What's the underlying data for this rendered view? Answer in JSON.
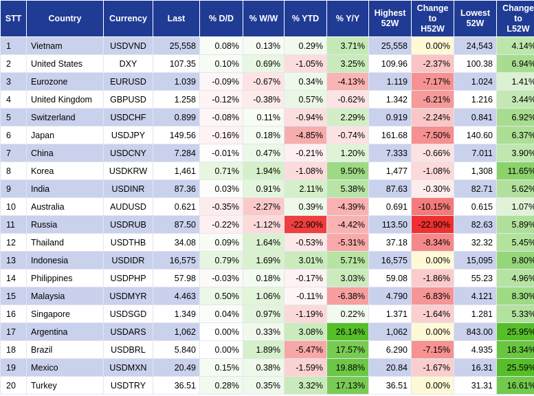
{
  "headers": {
    "stt": "STT",
    "country": "Country",
    "currency": "Currency",
    "last": "Last",
    "dd": "% D/D",
    "ww": "% W/W",
    "ytd": "% YTD",
    "yy": "% Y/Y",
    "h52_l1": "Highest",
    "h52_l2": "52W",
    "ch52_l1": "Change",
    "ch52_l2": "to",
    "ch52_l3": "H52W",
    "l52_l1": "Lowest",
    "l52_l2": "52W",
    "cl52_l1": "Change",
    "cl52_l2": "to",
    "cl52_l3": "L52W"
  },
  "rows": [
    {
      "stt": "1",
      "country": "Vietnam",
      "currency": "USDVND",
      "last": "25,558",
      "dd": "0.08%",
      "ww": "0.13%",
      "ytd": "0.29%",
      "yy": "3.71%",
      "h52": "25,558",
      "ch52": "0.00%",
      "l52": "24,543",
      "cl52": "4.14%"
    },
    {
      "stt": "2",
      "country": "United States",
      "currency": "DXY",
      "last": "107.35",
      "dd": "0.10%",
      "ww": "0.69%",
      "ytd": "-1.05%",
      "yy": "3.25%",
      "h52": "109.96",
      "ch52": "-2.37%",
      "l52": "100.38",
      "cl52": "6.94%"
    },
    {
      "stt": "3",
      "country": "Eurozone",
      "currency": "EURUSD",
      "last": "1.039",
      "dd": "-0.09%",
      "ww": "-0.67%",
      "ytd": "0.34%",
      "yy": "-4.13%",
      "h52": "1.119",
      "ch52": "-7.17%",
      "l52": "1.024",
      "cl52": "1.41%"
    },
    {
      "stt": "4",
      "country": "United Kingdom",
      "currency": "GBPUSD",
      "last": "1.258",
      "dd": "-0.12%",
      "ww": "-0.38%",
      "ytd": "0.57%",
      "yy": "-0.62%",
      "h52": "1.342",
      "ch52": "-6.21%",
      "l52": "1.216",
      "cl52": "3.44%"
    },
    {
      "stt": "5",
      "country": "Switzerland",
      "currency": "USDCHF",
      "last": "0.899",
      "dd": "-0.08%",
      "ww": "0.11%",
      "ytd": "-0.94%",
      "yy": "2.29%",
      "h52": "0.919",
      "ch52": "-2.24%",
      "l52": "0.841",
      "cl52": "6.92%"
    },
    {
      "stt": "6",
      "country": "Japan",
      "currency": "USDJPY",
      "last": "149.56",
      "dd": "-0.16%",
      "ww": "0.18%",
      "ytd": "-4.85%",
      "yy": "-0.74%",
      "h52": "161.68",
      "ch52": "-7.50%",
      "l52": "140.60",
      "cl52": "6.37%"
    },
    {
      "stt": "7",
      "country": "China",
      "currency": "USDCNY",
      "last": "7.284",
      "dd": "-0.01%",
      "ww": "0.47%",
      "ytd": "-0.21%",
      "yy": "1.20%",
      "h52": "7.333",
      "ch52": "-0.66%",
      "l52": "7.011",
      "cl52": "3.90%"
    },
    {
      "stt": "8",
      "country": "Korea",
      "currency": "USDKRW",
      "last": "1,461",
      "dd": "0.71%",
      "ww": "1.94%",
      "ytd": "-1.08%",
      "yy": "9.50%",
      "h52": "1,477",
      "ch52": "-1.08%",
      "l52": "1,308",
      "cl52": "11.65%"
    },
    {
      "stt": "9",
      "country": "India",
      "currency": "USDINR",
      "last": "87.36",
      "dd": "0.03%",
      "ww": "0.91%",
      "ytd": "2.11%",
      "yy": "5.38%",
      "h52": "87.63",
      "ch52": "-0.30%",
      "l52": "82.71",
      "cl52": "5.62%"
    },
    {
      "stt": "10",
      "country": "Australia",
      "currency": "AUDUSD",
      "last": "0.621",
      "dd": "-0.35%",
      "ww": "-2.27%",
      "ytd": "0.39%",
      "yy": "-4.39%",
      "h52": "0.691",
      "ch52": "-10.15%",
      "l52": "0.615",
      "cl52": "1.07%"
    },
    {
      "stt": "11",
      "country": "Russia",
      "currency": "USDRUB",
      "last": "87.50",
      "dd": "-0.22%",
      "ww": "-1.12%",
      "ytd": "-22.90%",
      "yy": "-4.42%",
      "h52": "113.50",
      "ch52": "-22.90%",
      "l52": "82.63",
      "cl52": "5.89%"
    },
    {
      "stt": "12",
      "country": "Thailand",
      "currency": "USDTHB",
      "last": "34.08",
      "dd": "0.09%",
      "ww": "1.64%",
      "ytd": "-0.53%",
      "yy": "-5.31%",
      "h52": "37.18",
      "ch52": "-8.34%",
      "l52": "32.32",
      "cl52": "5.45%"
    },
    {
      "stt": "13",
      "country": "Indonesia",
      "currency": "USDIDR",
      "last": "16,575",
      "dd": "0.79%",
      "ww": "1.69%",
      "ytd": "3.01%",
      "yy": "5.71%",
      "h52": "16,575",
      "ch52": "0.00%",
      "l52": "15,095",
      "cl52": "9.80%"
    },
    {
      "stt": "14",
      "country": "Philippines",
      "currency": "USDPHP",
      "last": "57.98",
      "dd": "-0.03%",
      "ww": "0.18%",
      "ytd": "-0.17%",
      "yy": "3.03%",
      "h52": "59.08",
      "ch52": "-1.86%",
      "l52": "55.23",
      "cl52": "4.96%"
    },
    {
      "stt": "15",
      "country": "Malaysia",
      "currency": "USDMYR",
      "last": "4.463",
      "dd": "0.50%",
      "ww": "1.06%",
      "ytd": "-0.11%",
      "yy": "-6.38%",
      "h52": "4.790",
      "ch52": "-6.83%",
      "l52": "4.121",
      "cl52": "8.30%"
    },
    {
      "stt": "16",
      "country": "Singapore",
      "currency": "USDSGD",
      "last": "1.349",
      "dd": "0.04%",
      "ww": "0.97%",
      "ytd": "-1.19%",
      "yy": "0.22%",
      "h52": "1.371",
      "ch52": "-1.64%",
      "l52": "1.281",
      "cl52": "5.33%"
    },
    {
      "stt": "17",
      "country": "Argentina",
      "currency": "USDARS",
      "last": "1,062",
      "dd": "0.00%",
      "ww": "0.33%",
      "ytd": "3.08%",
      "yy": "26.14%",
      "h52": "1,062",
      "ch52": "0.00%",
      "l52": "843.00",
      "cl52": "25.95%"
    },
    {
      "stt": "18",
      "country": "Brazil",
      "currency": "USDBRL",
      "last": "5.840",
      "dd": "0.00%",
      "ww": "1.89%",
      "ytd": "-5.47%",
      "yy": "17.57%",
      "h52": "6.290",
      "ch52": "-7.15%",
      "l52": "4.935",
      "cl52": "18.34%"
    },
    {
      "stt": "19",
      "country": "Mexico",
      "currency": "USDMXN",
      "last": "20.49",
      "dd": "0.15%",
      "ww": "0.38%",
      "ytd": "-1.59%",
      "yy": "19.88%",
      "h52": "20.84",
      "ch52": "-1.67%",
      "l52": "16.31",
      "cl52": "25.59%"
    },
    {
      "stt": "20",
      "country": "Turkey",
      "currency": "USDTRY",
      "last": "36.51",
      "dd": "0.28%",
      "ww": "0.35%",
      "ytd": "3.32%",
      "yy": "17.13%",
      "h52": "36.51",
      "ch52": "0.00%",
      "l52": "31.31",
      "cl52": "16.61%"
    }
  ]
}
